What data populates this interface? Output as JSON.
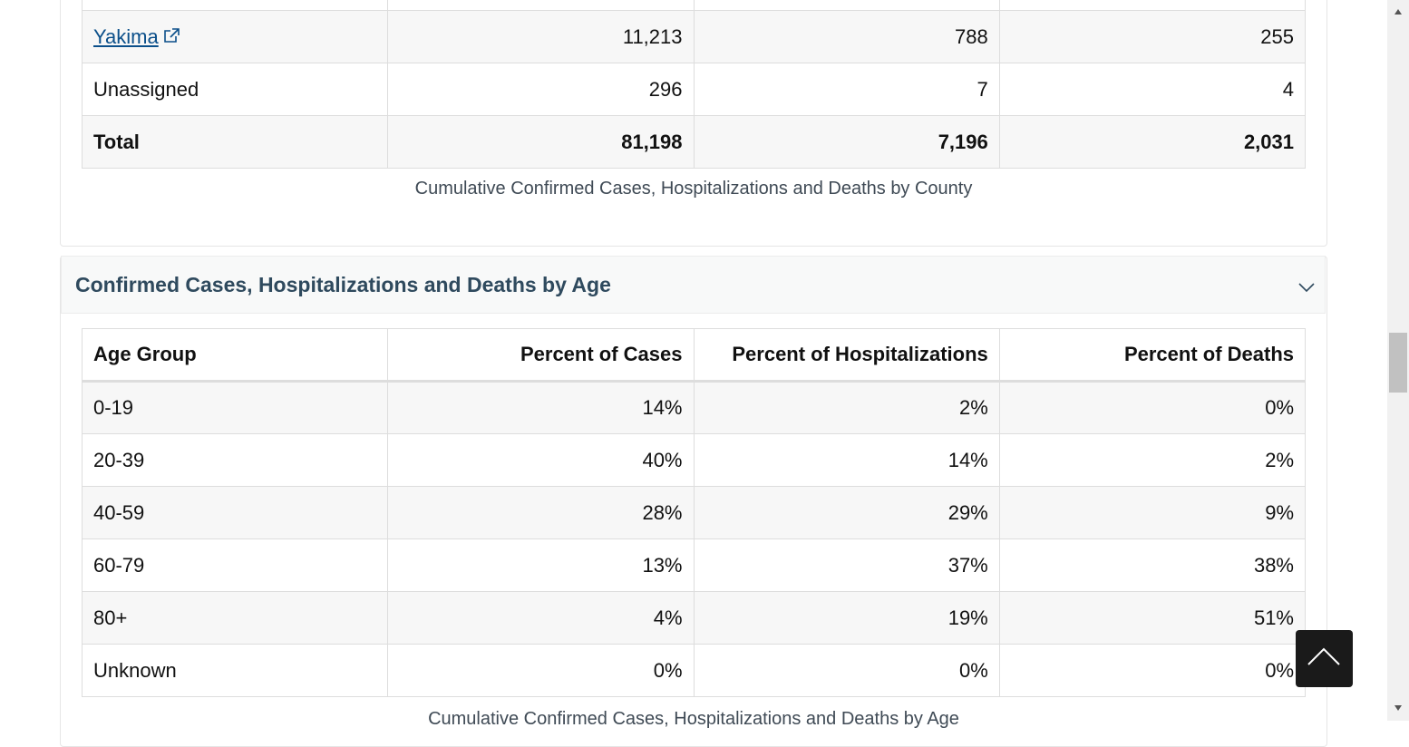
{
  "county_table": {
    "rows": [
      [
        "Yakima",
        "11,213",
        "788",
        "255"
      ],
      [
        "Unassigned",
        "296",
        "7",
        "4"
      ],
      [
        "Total",
        "81,198",
        "7,196",
        "2,031"
      ]
    ],
    "caption": "Cumulative Confirmed Cases, Hospitalizations and Deaths by County"
  },
  "age_section": {
    "title": "Confirmed Cases, Hospitalizations and Deaths by Age",
    "table": {
      "header": [
        "Age Group",
        "Percent of Cases",
        "Percent of Hospitalizations",
        "Percent of Deaths"
      ],
      "rows": [
        [
          "0-19",
          "14%",
          "2%",
          "0%"
        ],
        [
          "20-39",
          "40%",
          "14%",
          "2%"
        ],
        [
          "40-59",
          "28%",
          "29%",
          "9%"
        ],
        [
          "60-79",
          "13%",
          "37%",
          "38%"
        ],
        [
          "80+",
          "4%",
          "19%",
          "51%"
        ],
        [
          "Unknown",
          "0%",
          "0%",
          "0%"
        ]
      ]
    },
    "caption": "Cumulative Confirmed Cases, Hospitalizations and Deaths by Age"
  }
}
